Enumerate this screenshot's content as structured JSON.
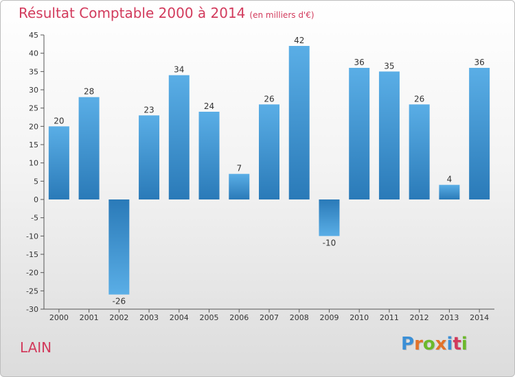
{
  "title": "Résultat Comptable 2000 à 2014",
  "subtitle": "(en milliers d'€)",
  "commune": "LAIN",
  "logo": {
    "letters": [
      "P",
      "r",
      "o",
      "x",
      "i",
      "t",
      "i"
    ],
    "colors": [
      "#3b8fd6",
      "#e2722a",
      "#6cb92b",
      "#e2722a",
      "#3b8fd6",
      "#d23a5c",
      "#6cb92b"
    ]
  },
  "colors": {
    "title": "#d23a5c",
    "bar_light": "#5aaee6",
    "bar_dark": "#2a7ab8"
  },
  "chart_data": {
    "type": "bar",
    "categories": [
      "2000",
      "2001",
      "2002",
      "2003",
      "2004",
      "2005",
      "2006",
      "2007",
      "2008",
      "2009",
      "2010",
      "2011",
      "2012",
      "2013",
      "2014"
    ],
    "values": [
      20,
      28,
      -26,
      23,
      34,
      24,
      7,
      26,
      42,
      -10,
      36,
      35,
      26,
      4,
      36
    ],
    "ylim": [
      -30,
      45
    ],
    "yticks": [
      45,
      40,
      35,
      30,
      25,
      20,
      15,
      10,
      5,
      0,
      -5,
      -10,
      -15,
      -20,
      -25,
      -30
    ],
    "grid": false,
    "data_labels": true
  }
}
